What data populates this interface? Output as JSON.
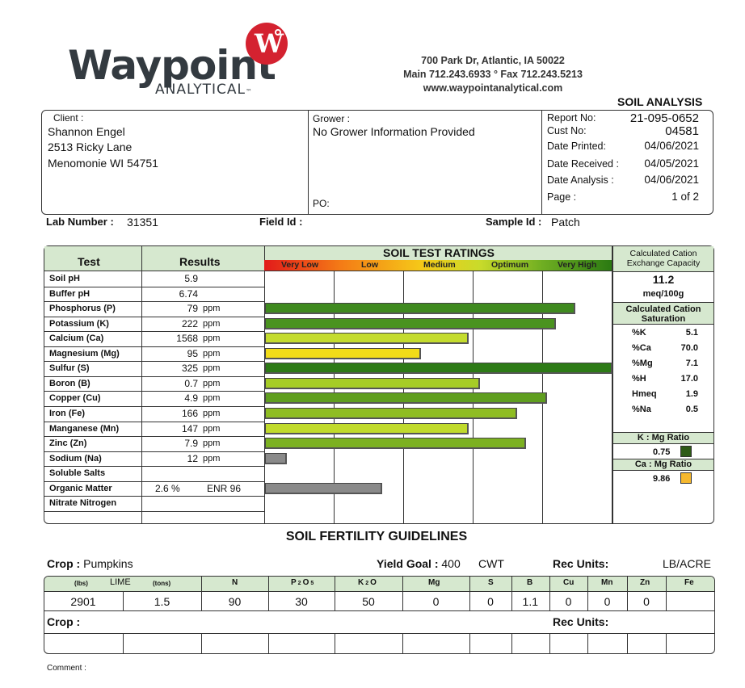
{
  "brand": {
    "name": "Waypoint",
    "sub": "ANALYTICAL",
    "badge": "W",
    "tm": "™",
    "color": "#d42230"
  },
  "address": {
    "line1": "700 Park Dr, Atlantic, IA 50022",
    "line2": "Main 712.243.6933 ° Fax 712.243.5213",
    "line3": "www.waypointanalytical.com"
  },
  "report_title": "SOIL ANALYSIS",
  "client": {
    "label": "Client :",
    "name": "Shannon Engel",
    "street": "2513 Ricky Lane",
    "city": "Menomonie WI  54751"
  },
  "grower": {
    "label": "Grower :",
    "value": "No Grower Information Provided",
    "po_label": "PO:"
  },
  "meta": [
    {
      "label": "Report No:",
      "value": "21-095-0652"
    },
    {
      "label": "Cust No:",
      "value": "04581"
    },
    {
      "label": "Date Printed:",
      "value": "04/06/2021"
    },
    {
      "label": "Date Received :",
      "value": "04/05/2021"
    },
    {
      "label": "Date Analysis :",
      "value": "04/06/2021"
    },
    {
      "label": "Page :",
      "value": "1 of 2"
    }
  ],
  "lab": {
    "label": "Lab Number :",
    "value": "31351",
    "field_label": "Field Id :",
    "field_value": "",
    "sample_label": "Sample Id :",
    "sample_value": "Patch"
  },
  "tests_header": {
    "test": "Test",
    "results": "Results",
    "ratings": "SOIL TEST RATINGS",
    "scale": [
      "Very Low",
      "Low",
      "Medium",
      "Optimum",
      "Very High"
    ]
  },
  "tests": [
    {
      "name": "Soil pH",
      "value": "5.9",
      "unit": "",
      "level": null,
      "color": ""
    },
    {
      "name": "Buffer pH",
      "value": "6.74",
      "unit": "",
      "level": null,
      "color": ""
    },
    {
      "name": "Phosphorus (P)",
      "value": "79",
      "unit": "ppm",
      "level": 0.894,
      "color": "#3f8a1f"
    },
    {
      "name": "Potassium (K)",
      "value": "222",
      "unit": "ppm",
      "level": 0.838,
      "color": "#4a931f"
    },
    {
      "name": "Calcium (Ca)",
      "value": "1568",
      "unit": "ppm",
      "level": 0.586,
      "color": "#c4dc2e"
    },
    {
      "name": "Magnesium (Mg)",
      "value": "95",
      "unit": "ppm",
      "level": 0.449,
      "color": "#f2dc18"
    },
    {
      "name": "Sulfur (S)",
      "value": "325",
      "unit": "ppm",
      "level": 1.0,
      "color": "#2d7a16"
    },
    {
      "name": "Boron (B)",
      "value": "0.7",
      "unit": "ppm",
      "level": 0.619,
      "color": "#a6cc26"
    },
    {
      "name": "Copper (Cu)",
      "value": "4.9",
      "unit": "ppm",
      "level": 0.812,
      "color": "#5f9e1f"
    },
    {
      "name": "Iron (Fe)",
      "value": "166",
      "unit": "ppm",
      "level": 0.726,
      "color": "#8fbd22"
    },
    {
      "name": "Manganese (Mn)",
      "value": "147",
      "unit": "ppm",
      "level": 0.586,
      "color": "#c0da2c"
    },
    {
      "name": "Zinc (Zn)",
      "value": "7.9",
      "unit": "ppm",
      "level": 0.751,
      "color": "#7cb121"
    },
    {
      "name": "Sodium (Na)",
      "value": "12",
      "unit": "ppm",
      "level": 0.063,
      "color": "#8a8a8a"
    },
    {
      "name": "Soluble Salts",
      "value": "",
      "unit": "",
      "level": null,
      "color": ""
    },
    {
      "name": "Organic Matter",
      "value": "2.6 %",
      "unit": "ENR 96",
      "level": 0.338,
      "color": "#8a8a8a"
    },
    {
      "name": "Nitrate Nitrogen",
      "value": "",
      "unit": "",
      "level": null,
      "color": ""
    }
  ],
  "cec": {
    "title": "Calculated Cation Exchange Capacity",
    "value": "11.2",
    "unit": "meq/100g",
    "sat_title": "Calculated Cation Saturation",
    "items": [
      {
        "label": "%K",
        "value": "5.1"
      },
      {
        "label": "%Ca",
        "value": "70.0"
      },
      {
        "label": "%Mg",
        "value": "7.1"
      },
      {
        "label": "%H",
        "value": "17.0"
      },
      {
        "label": "Hmeq",
        "value": "1.9"
      },
      {
        "label": "%Na",
        "value": "0.5"
      }
    ],
    "kmg_title": "K : Mg Ratio",
    "kmg_value": "0.75",
    "kmg_color": "#2d5a16",
    "camg_title": "Ca : Mg Ratio",
    "camg_value": "9.86",
    "camg_color": "#f5b82e"
  },
  "guidelines": {
    "title": "SOIL FERTILITY GUIDELINES",
    "crop_label": "Crop :",
    "crop": "Pumpkins",
    "yield_label": "Yield Goal :",
    "yield": "400",
    "yield_unit": "CWT",
    "rec_label": "Rec Units:",
    "rec_units": "LB/ACRE",
    "headers": [
      "(lbs)",
      "LIME",
      "(tons)",
      "N",
      "P",
      "2",
      "O",
      "5",
      "K",
      "2",
      "O",
      "Mg",
      "S",
      "B",
      "Cu",
      "Mn",
      "Zn",
      "Fe"
    ],
    "row": [
      "2901",
      "1.5",
      "90",
      "30",
      "50",
      "0",
      "0",
      "1.1",
      "0",
      "0",
      "0",
      ""
    ],
    "crop2_label": "Crop :",
    "rec2_label": "Rec Units:"
  },
  "comment_label": "Comment :"
}
